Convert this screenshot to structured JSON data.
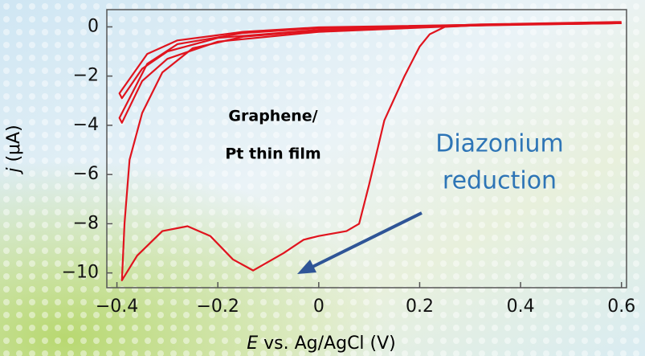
{
  "chart_data": {
    "type": "line",
    "color": "#e0141e",
    "xlabel": {
      "symbol": "E",
      "text": "vs. Ag/AgCl  (V)"
    },
    "ylabel": {
      "symbol": "j",
      "text": "(μA)"
    },
    "annotations": {
      "sample": [
        "Graphene/",
        "Pt thin film"
      ],
      "process": [
        "Diazonium",
        "reduction"
      ]
    },
    "xlim": [
      -0.42,
      0.61
    ],
    "ylim": [
      -10.6,
      0.7
    ],
    "xticks": [
      {
        "value": -0.4,
        "label": "−0.4"
      },
      {
        "value": -0.2,
        "label": "−0.2"
      },
      0,
      0.2,
      0.4,
      0.6
    ],
    "yticks": [
      0,
      {
        "value": -2,
        "label": "−2"
      },
      {
        "value": -4,
        "label": "−4"
      },
      {
        "value": -6,
        "label": "−6"
      },
      {
        "value": -8,
        "label": "−8"
      },
      {
        "value": -10,
        "label": "−10"
      }
    ],
    "series": [
      {
        "x": [
          0.6,
          0.5,
          0.4,
          0.3,
          0.25,
          0.22,
          0.2,
          0.17,
          0.13,
          0.1,
          0.08,
          0.055,
          0.0,
          -0.03,
          -0.07,
          -0.13,
          -0.17,
          -0.215,
          -0.26,
          -0.31,
          -0.36,
          -0.39,
          -0.385,
          -0.375,
          -0.35,
          -0.31,
          -0.25,
          -0.15,
          0.0,
          0.32,
          0.6
        ],
        "values": [
          0.15,
          0.12,
          0.1,
          0.05,
          0.0,
          -0.3,
          -0.8,
          -2.0,
          -3.8,
          -6.4,
          -8.0,
          -8.3,
          -8.5,
          -8.65,
          -9.2,
          -9.9,
          -9.45,
          -8.5,
          -8.1,
          -8.3,
          -9.3,
          -10.3,
          -8.0,
          -5.4,
          -3.5,
          -1.85,
          -0.87,
          -0.4,
          -0.15,
          0.1,
          0.2
        ]
      },
      {
        "x": [
          0.6,
          0.3,
          0.0,
          -0.15,
          -0.28,
          -0.34,
          -0.395,
          -0.39,
          -0.35,
          -0.3,
          -0.2,
          0.0,
          0.3,
          0.6
        ],
        "values": [
          0.15,
          0.08,
          -0.05,
          -0.25,
          -0.7,
          -1.5,
          -3.7,
          -3.9,
          -2.2,
          -1.3,
          -0.6,
          -0.2,
          0.05,
          0.15
        ]
      },
      {
        "x": [
          0.6,
          0.3,
          0.0,
          -0.15,
          -0.28,
          -0.34,
          -0.395,
          -0.39,
          -0.35,
          -0.3,
          -0.2,
          0.0,
          0.3,
          0.6
        ],
        "values": [
          0.15,
          0.08,
          -0.02,
          -0.2,
          -0.55,
          -1.1,
          -2.7,
          -2.9,
          -1.7,
          -1.0,
          -0.45,
          -0.12,
          0.07,
          0.15
        ]
      }
    ]
  }
}
